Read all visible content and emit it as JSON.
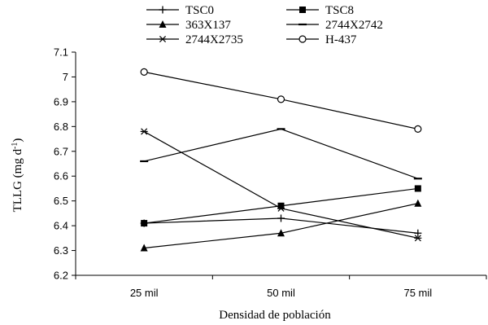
{
  "chart_data": {
    "type": "line",
    "title": "",
    "xlabel": "Densidad de población",
    "ylabel": "TLLG (mg d",
    "ylabel_sup": "-1",
    "ylabel_close": ")",
    "categories": [
      "25 mil",
      "50 mil",
      "75 mil"
    ],
    "ylim": [
      6.2,
      7.1
    ],
    "yticks": [
      "6.2",
      "6.3",
      "6.4",
      "6.5",
      "6.6",
      "6.7",
      "6.8",
      "6.9",
      "7",
      "7.1"
    ],
    "grid": false,
    "legend_position": "top",
    "series": [
      {
        "name": "TSC0",
        "marker": "plus",
        "values": [
          6.41,
          6.43,
          6.37
        ]
      },
      {
        "name": "TSC8",
        "marker": "square",
        "values": [
          6.41,
          6.48,
          6.55
        ]
      },
      {
        "name": "363X137",
        "marker": "triangle",
        "values": [
          6.31,
          6.37,
          6.49
        ]
      },
      {
        "name": "2744X2742",
        "marker": "dash",
        "values": [
          6.66,
          6.79,
          6.59
        ]
      },
      {
        "name": "2744X2735",
        "marker": "asterisk",
        "values": [
          6.78,
          6.47,
          6.35
        ]
      },
      {
        "name": "H-437",
        "marker": "circle",
        "values": [
          7.02,
          6.91,
          6.79
        ]
      }
    ],
    "line_color": "#000000"
  }
}
